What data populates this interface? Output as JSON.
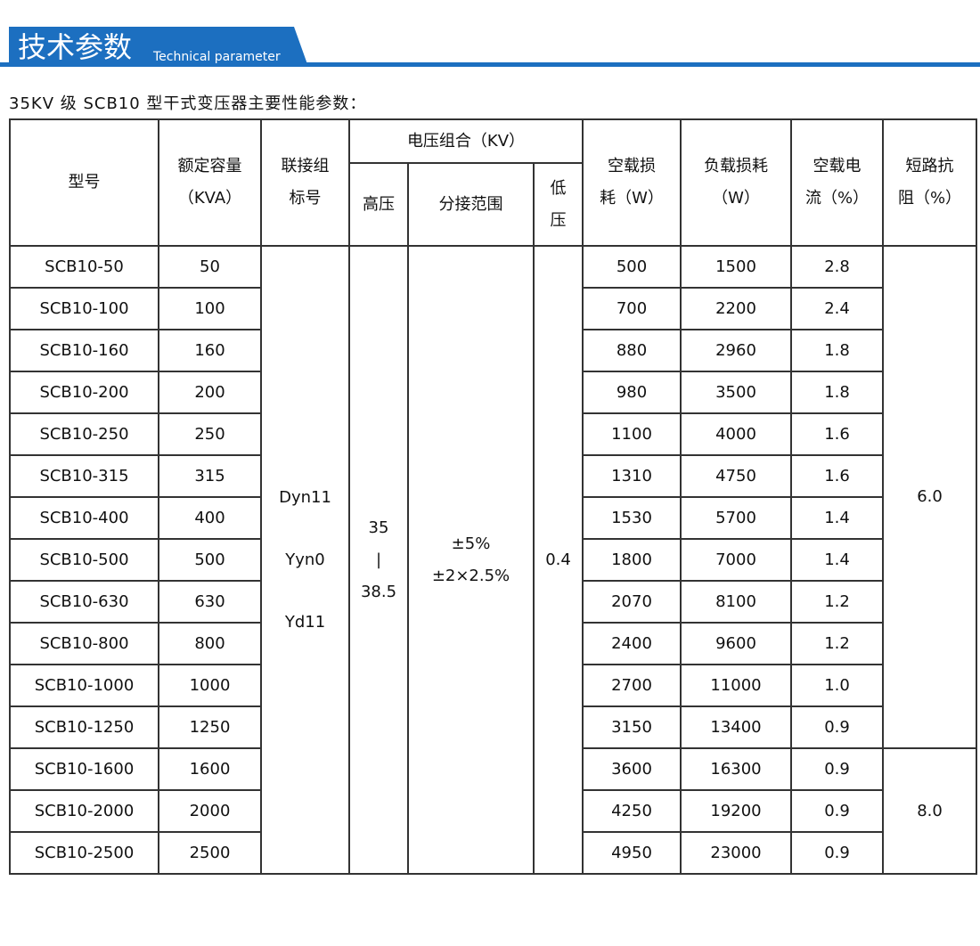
{
  "header": {
    "title": "技术参数",
    "subtitle": "Technical parameter"
  },
  "caption": "35KV 级 SCB10 型干式变压器主要性能参数：",
  "table": {
    "head": {
      "model": [
        "型号"
      ],
      "capacity": [
        "额定容量",
        "（KVA）"
      ],
      "connection": [
        "联接组",
        "标号"
      ],
      "voltage": [
        "电压组合（KV）"
      ],
      "high": [
        "高压"
      ],
      "tap": [
        "分接范围"
      ],
      "low": [
        "低",
        "压"
      ],
      "no_load_loss": [
        "空载损",
        "耗（W）"
      ],
      "load_loss": [
        "负载损耗",
        "（W）"
      ],
      "no_load_current": [
        "空载电",
        "流（%）"
      ],
      "impedance": [
        "短路抗",
        "阻（%）"
      ]
    },
    "rows": [
      [
        "SCB10-50",
        "50",
        "500",
        "1500",
        "2.8"
      ],
      [
        "SCB10-100",
        "100",
        "700",
        "2200",
        "2.4"
      ],
      [
        "SCB10-160",
        "160",
        "880",
        "2960",
        "1.8"
      ],
      [
        "SCB10-200",
        "200",
        "980",
        "3500",
        "1.8"
      ],
      [
        "SCB10-250",
        "250",
        "1100",
        "4000",
        "1.6"
      ],
      [
        "SCB10-315",
        "315",
        "1310",
        "4750",
        "1.6"
      ],
      [
        "SCB10-400",
        "400",
        "1530",
        "5700",
        "1.4"
      ],
      [
        "SCB10-500",
        "500",
        "1800",
        "7000",
        "1.4"
      ],
      [
        "SCB10-630",
        "630",
        "2070",
        "8100",
        "1.2"
      ],
      [
        "SCB10-800",
        "800",
        "2400",
        "9600",
        "1.2"
      ],
      [
        "SCB10-1000",
        "1000",
        "2700",
        "11000",
        "1.0"
      ],
      [
        "SCB10-1250",
        "1250",
        "3150",
        "13400",
        "0.9"
      ],
      [
        "SCB10-1600",
        "1600",
        "3600",
        "16300",
        "0.9"
      ],
      [
        "SCB10-2000",
        "2000",
        "4250",
        "19200",
        "0.9"
      ],
      [
        "SCB10-2500",
        "2500",
        "4950",
        "23000",
        "0.9"
      ]
    ],
    "connection": [
      "Dyn11",
      "Yyn0",
      "Yd11"
    ],
    "high_voltage": [
      "35",
      "|",
      "38.5"
    ],
    "tap_range": [
      "±5%",
      "±2×2.5%"
    ],
    "low_voltage": [
      "0.4"
    ],
    "impedance": [
      "6.0",
      "8.0"
    ]
  }
}
